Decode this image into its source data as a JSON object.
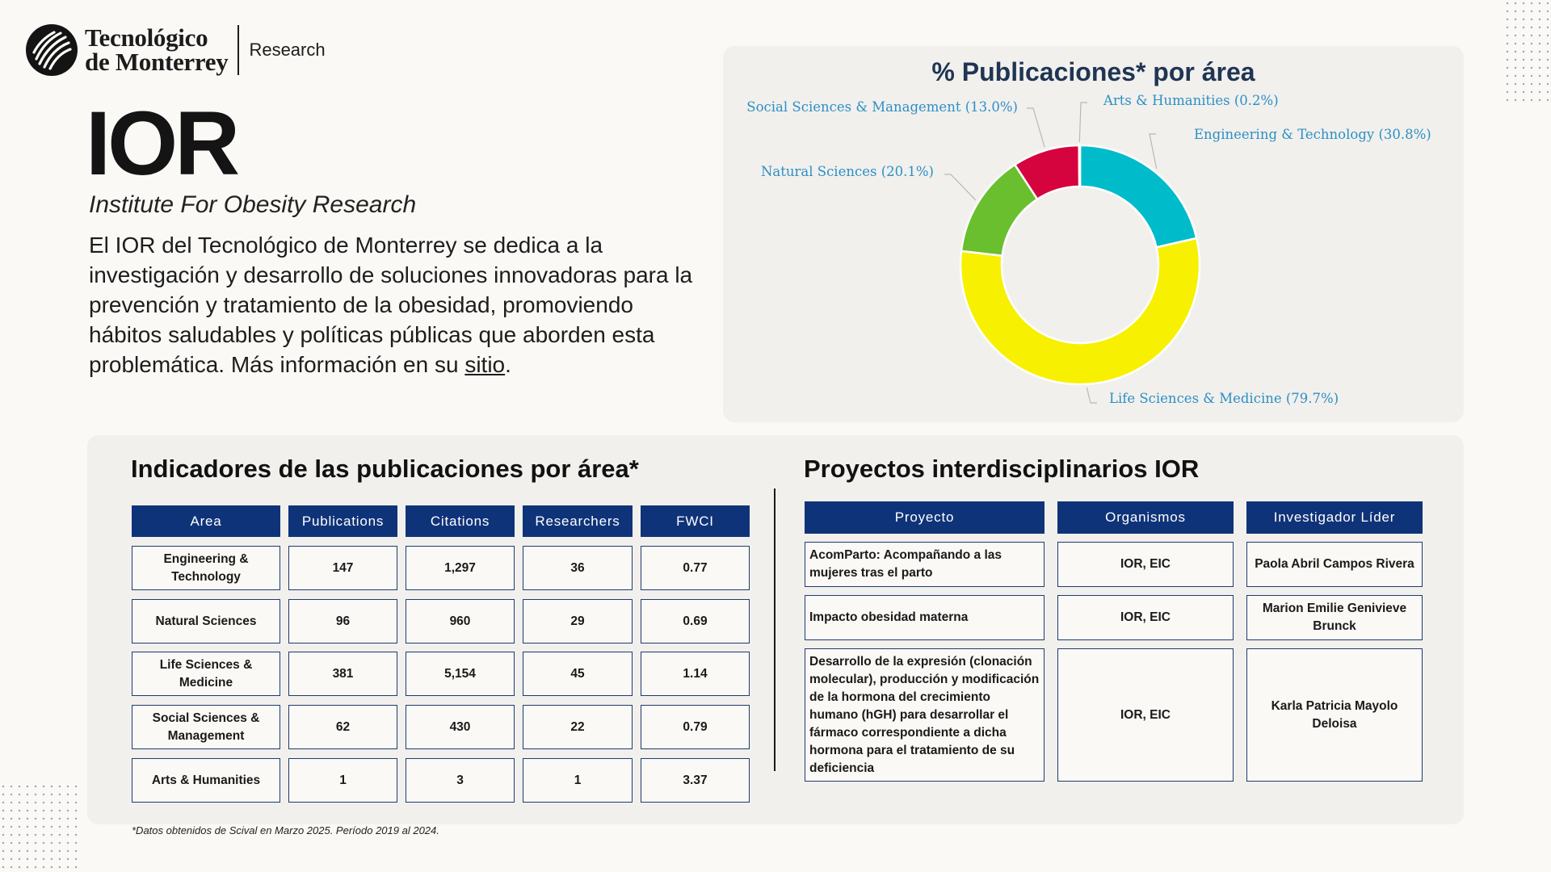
{
  "brand": {
    "name_line1": "Tecnológico",
    "name_line2": "de Monterrey",
    "section": "Research"
  },
  "institute": {
    "acronym": "IOR",
    "full_name": "Institute For Obesity Research",
    "description": "El IOR del Tecnológico de Monterrey se dedica a la investigación y desarrollo de soluciones innovadoras para la prevención y tratamiento de la obesidad, promoviendo hábitos saludables y políticas públicas que aborden esta problemática. Más información en su",
    "link_text": "sitio",
    "end_punct": "."
  },
  "chart_data": {
    "type": "pie",
    "title": "% Publicaciones* por área",
    "labels": [
      "Engineering & Technology (30.8%)",
      "Life Sciences & Medicine (79.7%)",
      "Natural Sciences (20.1%)",
      "Social Sciences & Management (13.0%)",
      "Arts & Humanities (0.2%)"
    ],
    "values": [
      30.8,
      79.7,
      20.1,
      13.0,
      0.2
    ],
    "colors": [
      "#00bccb",
      "#f7f000",
      "#6abf2e",
      "#d6043e",
      "#2a3b8f"
    ],
    "label_colors": [
      "#2d8fc4",
      "#2d8fc4",
      "#2d8fc4",
      "#2d8fc4",
      "#2d8fc4"
    ],
    "donut": true
  },
  "indicators": {
    "title": "Indicadores de las publicaciones por área*",
    "headers": [
      "Area",
      "Publications",
      "Citations",
      "Researchers",
      "FWCI"
    ],
    "rows": [
      [
        "Engineering & Technology",
        "147",
        "1,297",
        "36",
        "0.77"
      ],
      [
        "Natural Sciences",
        "96",
        "960",
        "29",
        "0.69"
      ],
      [
        "Life Sciences & Medicine",
        "381",
        "5,154",
        "45",
        "1.14"
      ],
      [
        "Social Sciences & Management",
        "62",
        "430",
        "22",
        "0.79"
      ],
      [
        "Arts & Humanities",
        "1",
        "3",
        "1",
        "3.37"
      ]
    ]
  },
  "projects": {
    "title": "Proyectos interdisciplinarios IOR",
    "headers": [
      "Proyecto",
      "Organismos",
      "Investigador Líder"
    ],
    "rows": [
      [
        "AcomParto: Acompañando a las mujeres tras el parto",
        "IOR, EIC",
        "Paola Abril Campos Rivera"
      ],
      [
        "Impacto obesidad materna",
        "IOR, EIC",
        "Marion Emilie Genivieve Brunck"
      ],
      [
        "Desarrollo de la expresión (clonación molecular), producción y modificación de la hormona del crecimiento humano (hGH) para desarrollar el fármaco correspondiente a dicha hormona para el tratamiento de su deficiencia",
        "IOR, EIC",
        "Karla Patricia Mayolo Deloisa"
      ]
    ]
  },
  "footnote": "*Datos obtenidos de Scival en Marzo 2025. Período 2019 al 2024."
}
